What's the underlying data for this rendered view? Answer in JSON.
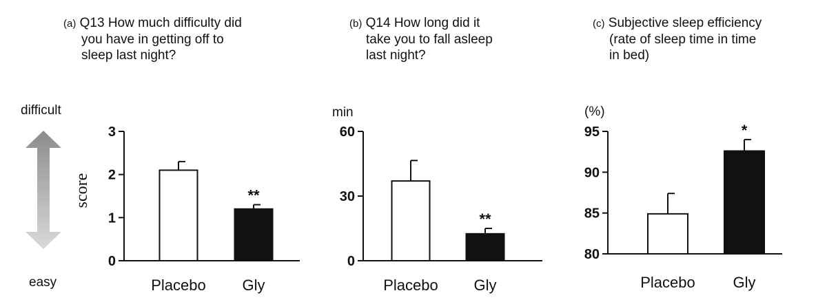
{
  "panels": [
    {
      "panel_label": "(a)",
      "title_lines": [
        "Q13 How much difficulty did",
        "you have in getting off to",
        "sleep last night?"
      ]
    },
    {
      "panel_label": "(b)",
      "title_lines": [
        "Q14 How long did it",
        "take you to fall asleep",
        "last night?"
      ]
    },
    {
      "panel_label": "(c)",
      "title_lines": [
        "Subjective sleep efficiency",
        "(rate of sleep time in time",
        "in bed)"
      ]
    }
  ],
  "scale_labels": {
    "top": "difficult",
    "bottom": "easy"
  },
  "colors": {
    "placebo": "#ffffff",
    "gly": "#111111",
    "arrow_top": "#8c8c8c",
    "arrow_bottom": "#d9d9d9"
  },
  "chart_data": [
    {
      "type": "bar",
      "categories": [
        "Placebo",
        "Gly"
      ],
      "values": [
        2.1,
        1.2
      ],
      "error": [
        0.2,
        0.1
      ],
      "significance": [
        "",
        "**"
      ],
      "ylabel": "score",
      "unit": "",
      "ylim": [
        0,
        3
      ],
      "yticks": [
        0,
        1,
        2,
        3
      ],
      "grid": false
    },
    {
      "type": "bar",
      "categories": [
        "Placebo",
        "Gly"
      ],
      "values": [
        37,
        12.5
      ],
      "error": [
        9.5,
        2.5
      ],
      "significance": [
        "",
        "**"
      ],
      "ylabel": "",
      "unit": "min",
      "ylim": [
        0,
        60
      ],
      "yticks": [
        0,
        30,
        60
      ],
      "grid": false
    },
    {
      "type": "bar",
      "categories": [
        "Placebo",
        "Gly"
      ],
      "values": [
        84.9,
        92.6
      ],
      "error": [
        2.5,
        1.4
      ],
      "significance": [
        "",
        "*"
      ],
      "ylabel": "",
      "unit": "(%)",
      "ylim": [
        80,
        95
      ],
      "yticks": [
        80,
        85,
        90,
        95
      ],
      "grid": false
    }
  ]
}
